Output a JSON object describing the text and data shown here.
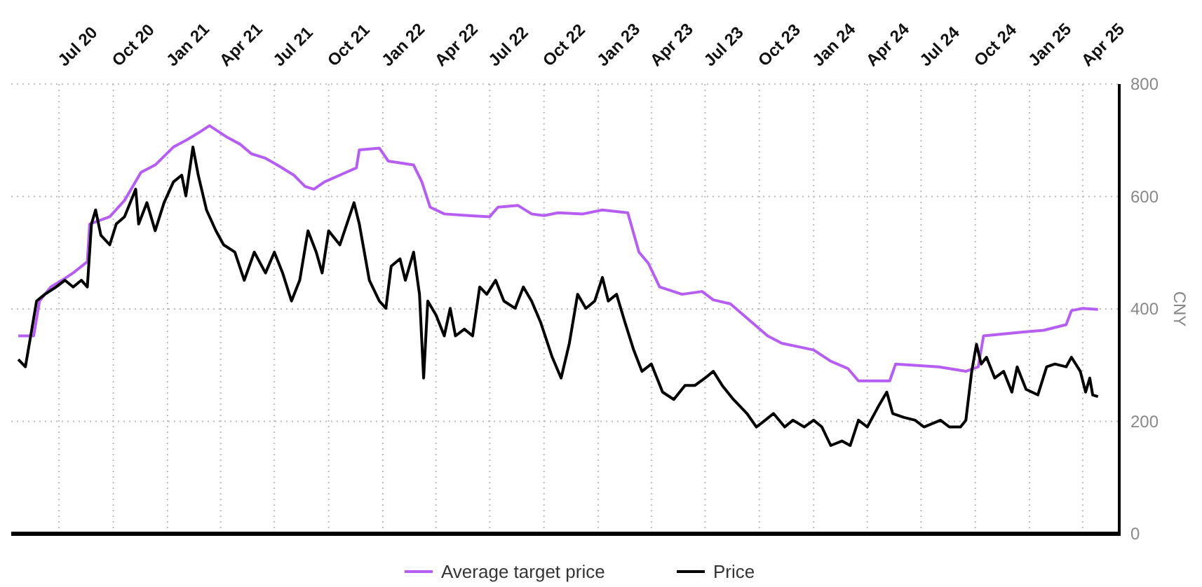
{
  "chart_data": {
    "type": "line",
    "ylabel": "CNY",
    "xlim": [
      "2020-04-11",
      "2025-06-02"
    ],
    "ylim": [
      0,
      800
    ],
    "xticks": [
      {
        "value": "2020-07-01",
        "label": "Jul 20"
      },
      {
        "value": "2020-10-01",
        "label": "Oct 20"
      },
      {
        "value": "2021-01-01",
        "label": "Jan 21"
      },
      {
        "value": "2021-04-01",
        "label": "Apr 21"
      },
      {
        "value": "2021-07-01",
        "label": "Jul 21"
      },
      {
        "value": "2021-10-01",
        "label": "Oct 21"
      },
      {
        "value": "2022-01-01",
        "label": "Jan 22"
      },
      {
        "value": "2022-04-01",
        "label": "Apr 22"
      },
      {
        "value": "2022-07-01",
        "label": "Jul 22"
      },
      {
        "value": "2022-10-01",
        "label": "Oct 22"
      },
      {
        "value": "2023-01-01",
        "label": "Jan 23"
      },
      {
        "value": "2023-04-01",
        "label": "Apr 23"
      },
      {
        "value": "2023-07-01",
        "label": "Jul 23"
      },
      {
        "value": "2023-10-01",
        "label": "Oct 23"
      },
      {
        "value": "2024-01-01",
        "label": "Jan 24"
      },
      {
        "value": "2024-04-01",
        "label": "Apr 24"
      },
      {
        "value": "2024-07-01",
        "label": "Jul 24"
      },
      {
        "value": "2024-10-01",
        "label": "Oct 24"
      },
      {
        "value": "2025-01-01",
        "label": "Jan 25"
      },
      {
        "value": "2025-04-01",
        "label": "Apr 25"
      }
    ],
    "yticks": [
      0,
      200,
      400,
      600,
      800
    ],
    "grid": true,
    "legend": "bottom",
    "marker": "none",
    "line_style": "solid",
    "series": [
      {
        "name": "Average target price",
        "color": "#b65ef2",
        "x": [
          "2020-04-23",
          "2020-05-19",
          "2020-05-29",
          "2020-06-17",
          "2020-07-06",
          "2020-07-25",
          "2020-08-18",
          "2020-08-22",
          "2020-09-25",
          "2020-10-20",
          "2020-11-17",
          "2020-12-11",
          "2021-01-11",
          "2021-02-03",
          "2021-02-22",
          "2021-03-13",
          "2021-04-11",
          "2021-05-04",
          "2021-05-23",
          "2021-06-16",
          "2021-07-06",
          "2021-08-03",
          "2021-08-22",
          "2021-09-06",
          "2021-09-24",
          "2021-10-20",
          "2021-11-17",
          "2021-11-22",
          "2021-12-26",
          "2022-01-10",
          "2022-02-22",
          "2022-03-08",
          "2022-03-22",
          "2022-04-15",
          "2022-05-26",
          "2022-07-01",
          "2022-07-15",
          "2022-08-18",
          "2022-09-10",
          "2022-10-01",
          "2022-10-25",
          "2022-12-06",
          "2023-01-08",
          "2023-02-20",
          "2023-03-11",
          "2023-03-27",
          "2023-04-15",
          "2023-05-23",
          "2023-06-26",
          "2023-07-15",
          "2023-08-13",
          "2023-10-15",
          "2023-11-08",
          "2024-01-01",
          "2024-01-30",
          "2024-02-28",
          "2024-03-17",
          "2024-05-09",
          "2024-05-19",
          "2024-07-31",
          "2024-09-15",
          "2024-10-06",
          "2024-10-15",
          "2024-12-21",
          "2025-01-25",
          "2025-03-04",
          "2025-03-13",
          "2025-04-01",
          "2025-04-27"
        ],
        "values": [
          352,
          352,
          414,
          439,
          451,
          464,
          484,
          551,
          564,
          593,
          643,
          656,
          688,
          701,
          713,
          726,
          706,
          693,
          676,
          668,
          656,
          638,
          618,
          613,
          626,
          638,
          651,
          683,
          686,
          663,
          656,
          626,
          581,
          569,
          566,
          564,
          581,
          584,
          569,
          566,
          571,
          569,
          576,
          571,
          501,
          481,
          439,
          426,
          431,
          416,
          409,
          352,
          339,
          327,
          307,
          294,
          272,
          272,
          302,
          297,
          289,
          297,
          352,
          359,
          362,
          372,
          397,
          401,
          399
        ]
      },
      {
        "name": "Price",
        "color": "#000000",
        "x": [
          "2020-04-23",
          "2020-05-05",
          "2020-05-14",
          "2020-05-24",
          "2020-06-07",
          "2020-06-26",
          "2020-07-11",
          "2020-07-25",
          "2020-08-08",
          "2020-08-18",
          "2020-08-25",
          "2020-09-01",
          "2020-09-10",
          "2020-09-25",
          "2020-10-06",
          "2020-10-20",
          "2020-11-08",
          "2020-11-13",
          "2020-11-27",
          "2020-12-11",
          "2020-12-26",
          "2021-01-11",
          "2021-01-25",
          "2021-02-01",
          "2021-02-13",
          "2021-02-22",
          "2021-03-08",
          "2021-03-24",
          "2021-04-06",
          "2021-04-25",
          "2021-05-11",
          "2021-05-28",
          "2021-06-16",
          "2021-07-01",
          "2021-07-15",
          "2021-07-30",
          "2021-08-13",
          "2021-08-27",
          "2021-09-10",
          "2021-09-20",
          "2021-10-01",
          "2021-10-20",
          "2021-11-13",
          "2021-11-22",
          "2021-12-09",
          "2021-12-26",
          "2022-01-06",
          "2022-01-15",
          "2022-01-30",
          "2022-02-08",
          "2022-02-22",
          "2022-03-04",
          "2022-03-11",
          "2022-03-18",
          "2022-04-01",
          "2022-04-15",
          "2022-04-25",
          "2022-05-04",
          "2022-05-19",
          "2022-06-02",
          "2022-06-14",
          "2022-06-26",
          "2022-07-11",
          "2022-07-25",
          "2022-08-13",
          "2022-08-27",
          "2022-09-10",
          "2022-09-25",
          "2022-10-15",
          "2022-10-30",
          "2022-11-13",
          "2022-11-27",
          "2022-12-11",
          "2022-12-26",
          "2023-01-08",
          "2023-01-18",
          "2023-02-01",
          "2023-02-15",
          "2023-03-02",
          "2023-03-16",
          "2023-04-01",
          "2023-04-20",
          "2023-05-09",
          "2023-05-28",
          "2023-06-14",
          "2023-07-01",
          "2023-07-15",
          "2023-07-30",
          "2023-08-18",
          "2023-09-10",
          "2023-09-26",
          "2023-10-11",
          "2023-10-25",
          "2023-11-13",
          "2023-11-27",
          "2023-12-16",
          "2024-01-01",
          "2024-01-15",
          "2024-01-30",
          "2024-02-18",
          "2024-03-03",
          "2024-03-17",
          "2024-04-01",
          "2024-04-20",
          "2024-05-04",
          "2024-05-14",
          "2024-06-02",
          "2024-06-21",
          "2024-07-06",
          "2024-08-03",
          "2024-08-18",
          "2024-09-06",
          "2024-09-15",
          "2024-09-25",
          "2024-10-03",
          "2024-10-11",
          "2024-10-20",
          "2024-11-03",
          "2024-11-18",
          "2024-12-02",
          "2024-12-11",
          "2024-12-26",
          "2025-01-15",
          "2025-01-30",
          "2025-02-13",
          "2025-03-04",
          "2025-03-13",
          "2025-03-28",
          "2025-04-06",
          "2025-04-13",
          "2025-04-18",
          "2025-04-27"
        ],
        "values": [
          310,
          297,
          352,
          414,
          426,
          439,
          451,
          439,
          451,
          439,
          551,
          576,
          531,
          514,
          551,
          564,
          613,
          551,
          589,
          539,
          589,
          626,
          638,
          601,
          688,
          638,
          576,
          539,
          514,
          501,
          451,
          501,
          464,
          501,
          464,
          414,
          451,
          539,
          501,
          464,
          539,
          514,
          589,
          551,
          451,
          414,
          401,
          476,
          489,
          451,
          501,
          426,
          277,
          414,
          389,
          352,
          401,
          352,
          364,
          352,
          439,
          426,
          451,
          414,
          401,
          439,
          414,
          377,
          314,
          277,
          339,
          426,
          401,
          414,
          456,
          414,
          426,
          377,
          327,
          289,
          302,
          252,
          239,
          264,
          264,
          277,
          289,
          264,
          239,
          214,
          190,
          202,
          214,
          190,
          202,
          190,
          202,
          190,
          157,
          165,
          157,
          202,
          190,
          227,
          252,
          214,
          207,
          202,
          190,
          202,
          190,
          190,
          202,
          289,
          337,
          302,
          314,
          277,
          289,
          252,
          297,
          257,
          247,
          297,
          302,
          297,
          314,
          289,
          252,
          277,
          247,
          244
        ]
      }
    ]
  }
}
